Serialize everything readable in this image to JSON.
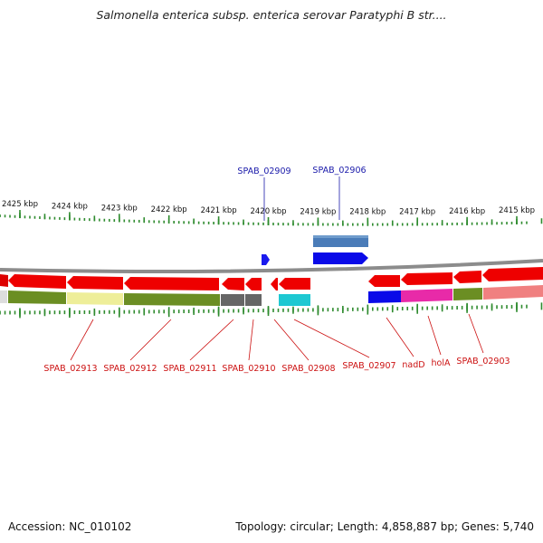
{
  "title": "Salmonella enterica subsp. enterica serovar Paratyphi B str....",
  "footer": {
    "accession": "Accession: NC_010102",
    "stats": "Topology: circular; Length: 4,858,887 bp; Genes: 5,740"
  },
  "colors": {
    "backbone": "#8c8c8c",
    "tick": "#2e8b2e",
    "forward_label": "#1a1aaa",
    "reverse_label": "#cc1111"
  },
  "scale": {
    "unit": "kbp",
    "major_ticks": [
      {
        "kbp": 2425,
        "label": "2425 kbp"
      },
      {
        "kbp": 2424,
        "label": "2424 kbp"
      },
      {
        "kbp": 2423,
        "label": "2423 kbp"
      },
      {
        "kbp": 2422,
        "label": "2422 kbp"
      },
      {
        "kbp": 2421,
        "label": "2421 kbp"
      },
      {
        "kbp": 2420,
        "label": "2420 kbp"
      },
      {
        "kbp": 2419,
        "label": "2419 kbp"
      },
      {
        "kbp": 2418,
        "label": "2418 kbp"
      },
      {
        "kbp": 2417,
        "label": "2417 kbp"
      },
      {
        "kbp": 2416,
        "label": "2416 kbp"
      },
      {
        "kbp": 2415,
        "label": "2415 kbp"
      }
    ]
  },
  "forward_labels": [
    {
      "text": "SPAB_02909",
      "kbp": 2420.0
    },
    {
      "text": "SPAB_02906",
      "kbp": 2418.65
    }
  ],
  "reverse_labels": [
    {
      "text": "SPAB_02913",
      "kbp": 2423.8
    },
    {
      "text": "SPAB_02912",
      "kbp": 2422.35
    },
    {
      "text": "SPAB_02911",
      "kbp": 2421.0
    },
    {
      "text": "SPAB_02910",
      "kbp": 2420.2
    },
    {
      "text": "SPAB_02908",
      "kbp": 2419.7
    },
    {
      "text": "SPAB_02907",
      "kbp": 2419.3
    },
    {
      "text": "nadD",
      "kbp": 2417.75
    },
    {
      "text": "holA",
      "kbp": 2417.1
    },
    {
      "text": "SPAB_02903",
      "kbp": 2416.35
    }
  ]
}
